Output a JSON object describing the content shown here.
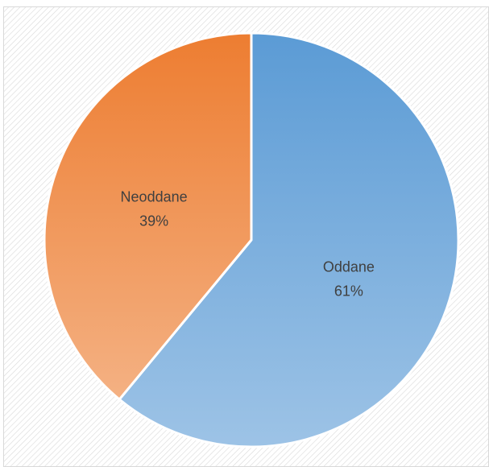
{
  "chart_data": {
    "type": "pie",
    "categories": [
      "Oddane",
      "Neoddane"
    ],
    "values": [
      61,
      39
    ],
    "value_labels": [
      "61%",
      "39%"
    ],
    "title": "",
    "legend": "none",
    "colors": {
      "Oddane": {
        "top": "#5b9bd5",
        "bottom": "#9dc3e6"
      },
      "Neoddane": {
        "top": "#ed7d31",
        "bottom": "#f4b183"
      }
    },
    "start_angle_deg": 0,
    "direction": "clockwise"
  },
  "chart_area": {
    "background_pattern_color": "#d9d9d9",
    "border_color": "#d9d9d9"
  }
}
